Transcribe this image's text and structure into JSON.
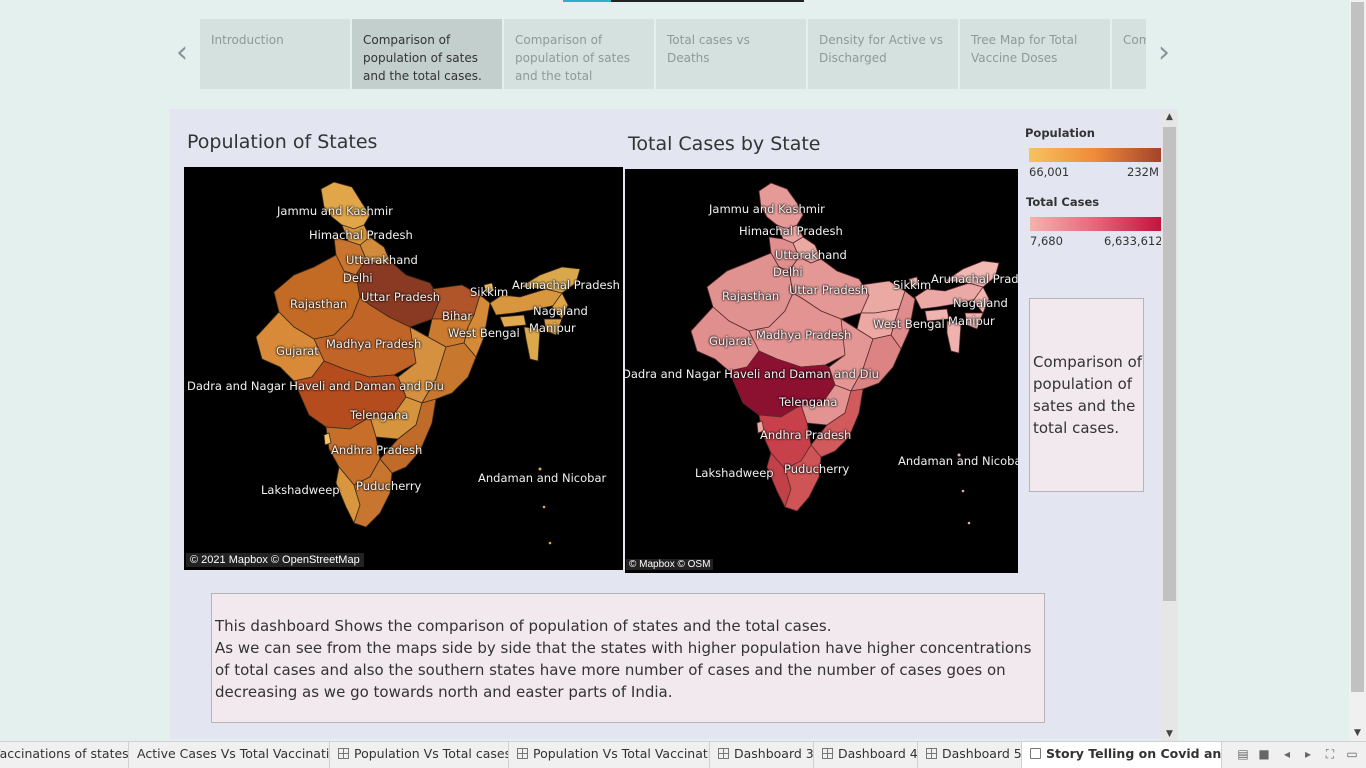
{
  "story": {
    "points": [
      "Introduction",
      "Comparison of population of sates and the total cases.",
      "Comparison of population of sates and the total",
      "Total cases vs Deaths",
      "Density for Active vs Discharged",
      "Tree Map for Total Vaccine Doses",
      "Com ratio"
    ],
    "active_index": 1
  },
  "left_map": {
    "title": "Population of States",
    "attribution": "© 2021 Mapbox © OpenStreetMap",
    "labels": [
      "Jammu and Kashmir",
      "Himachal Pradesh",
      "Uttarakhand",
      "Delhi",
      "Uttar Pradesh",
      "Rajasthan",
      "Sikkim",
      "Arunachal Pradesh",
      "Nagaland",
      "Manipur",
      "Bihar",
      "West Bengal",
      "Gujarat",
      "Madhya Pradesh",
      "Dadra and Nagar Haveli and Daman and Diu",
      "Telengana",
      "Andhra Pradesh",
      "Lakshadweep",
      "Puducherry",
      "Andaman and Nicobar"
    ]
  },
  "right_map": {
    "title": "Total Cases by State",
    "attribution": "© Mapbox © OSM",
    "labels": [
      "Jammu and Kashmir",
      "Himachal Pradesh",
      "Uttarakhand",
      "Delhi",
      "Uttar Pradesh",
      "Rajasthan",
      "Sikkim",
      "Arunachal Prad",
      "Nagaland",
      "Manipur",
      "West Bengal",
      "Gujarat",
      "Madhya Pradesh",
      "Dadra and Nagar Haveli and Daman and Diu",
      "Telengana",
      "Andhra Pradesh",
      "Lakshadweep",
      "Puducherry",
      "Andaman and Nicoba"
    ]
  },
  "legend": {
    "population": {
      "title": "Population",
      "min": "66,001",
      "max": "232M",
      "colors": [
        "#f5c35f",
        "#ef8a3a",
        "#a3432a"
      ]
    },
    "cases": {
      "title": "Total Cases",
      "min": "7,680",
      "max": "6,633,612",
      "colors": [
        "#f4b3ad",
        "#e8657a",
        "#c0143e"
      ]
    }
  },
  "caption": "Comparison of population of sates and the total cases.",
  "description": "This dashboard Shows the comparison of population of states and the total cases.\nAs we can see from the maps side by side that the states with higher population have  higher concentrations of total cases and also the southern states have more number of cases and the number of cases goes on decreasing as we go towards north and easter parts of India.",
  "tabs": [
    {
      "label": "Vaccinations of states",
      "icon": "none"
    },
    {
      "label": "Active Cases Vs Total Vaccinati...",
      "icon": "none"
    },
    {
      "label": "Population Vs Total cases",
      "icon": "dashboard-icon"
    },
    {
      "label": "Population Vs Total Vaccinati...",
      "icon": "dashboard-icon"
    },
    {
      "label": "Dashboard 3",
      "icon": "dashboard-icon"
    },
    {
      "label": "Dashboard 4",
      "icon": "dashboard-icon"
    },
    {
      "label": "Dashboard 5",
      "icon": "dashboard-icon"
    },
    {
      "label": "Story Telling on Covid and v...",
      "icon": "story-icon",
      "active": true
    }
  ],
  "colors": {
    "background": "#e3f0ed",
    "dashboard": "#e3e6f0",
    "story_active": "#c3cfcc",
    "story_inactive": "#d4e1de",
    "note_fill": "#f2e9ef"
  }
}
